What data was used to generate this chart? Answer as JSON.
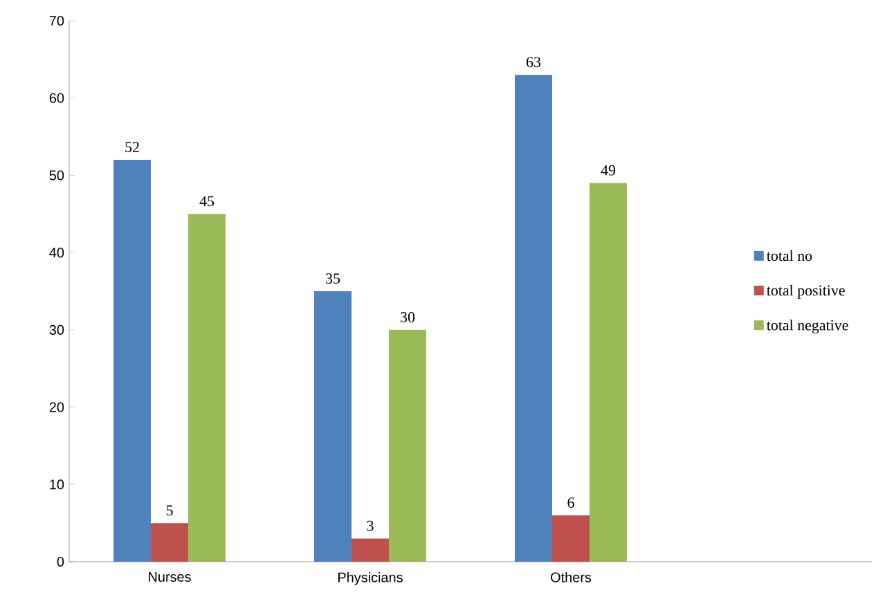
{
  "chart_data": {
    "type": "bar",
    "categories": [
      "Nurses",
      "Physicians",
      "Others",
      null
    ],
    "series": [
      {
        "name": "total no",
        "color": "#4f81bd",
        "values": [
          52,
          35,
          63,
          null
        ]
      },
      {
        "name": "total positive",
        "color": "#c0504d",
        "values": [
          5,
          3,
          6,
          null
        ]
      },
      {
        "name": "total negative",
        "color": "#9bbb59",
        "values": [
          45,
          30,
          49,
          null
        ]
      }
    ],
    "ylim": [
      0,
      70
    ],
    "yticks": [
      0,
      10,
      20,
      30,
      40,
      50,
      60,
      70
    ],
    "data_labels": true,
    "legend": "right",
    "grid": false
  }
}
